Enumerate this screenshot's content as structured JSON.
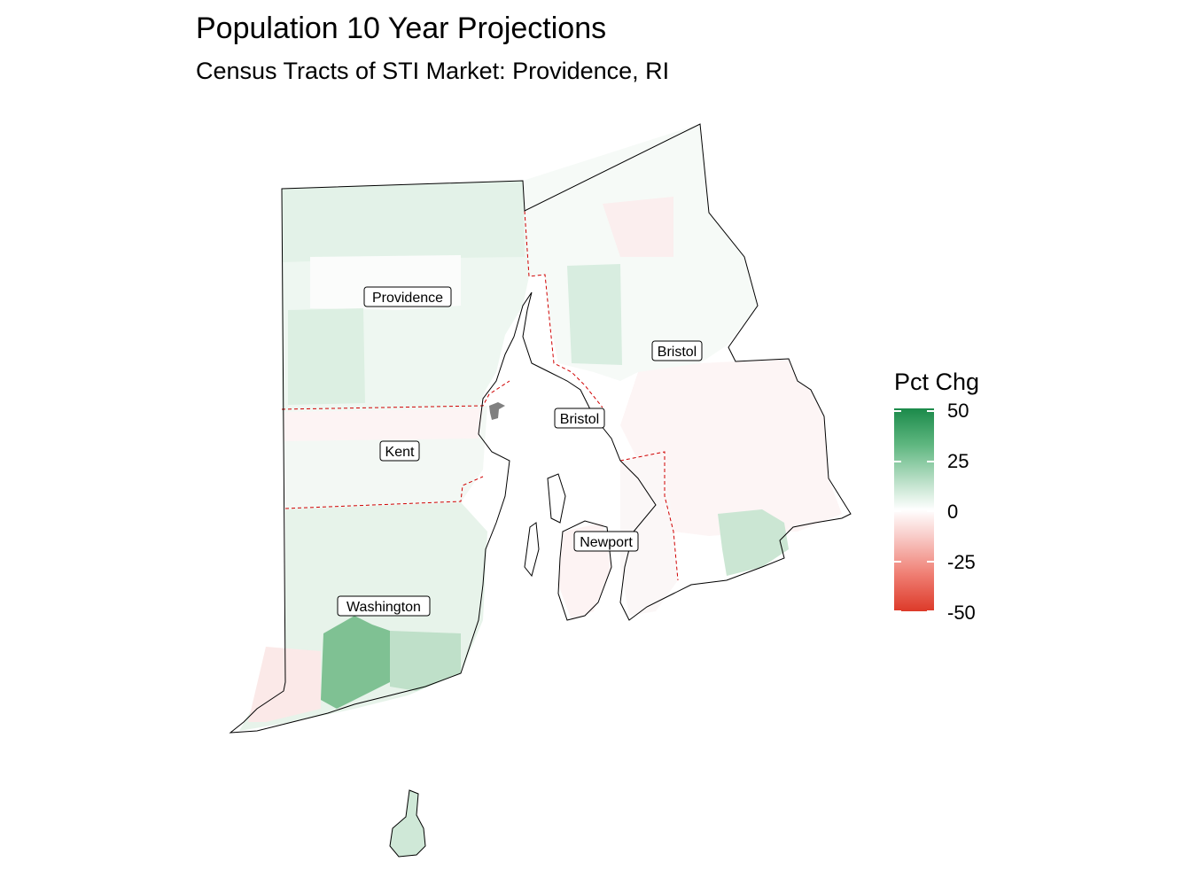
{
  "title": "Population 10 Year Projections",
  "subtitle": "Census Tracts of STI Market: Providence, RI",
  "legend": {
    "title": "Pct Chg",
    "ticks": [
      "50",
      "25",
      "0",
      "-25",
      "-50"
    ],
    "range": [
      -50,
      50
    ],
    "colors": {
      "high": "#1b8a4a",
      "mid": "#ffffff",
      "low": "#dd3a29"
    }
  },
  "county_labels": [
    "Providence",
    "Bristol",
    "Bristol",
    "Kent",
    "Newport",
    "Washington"
  ],
  "colors": {
    "outline": "#000000",
    "county_border": "#d00000",
    "missing": "#808080"
  }
}
